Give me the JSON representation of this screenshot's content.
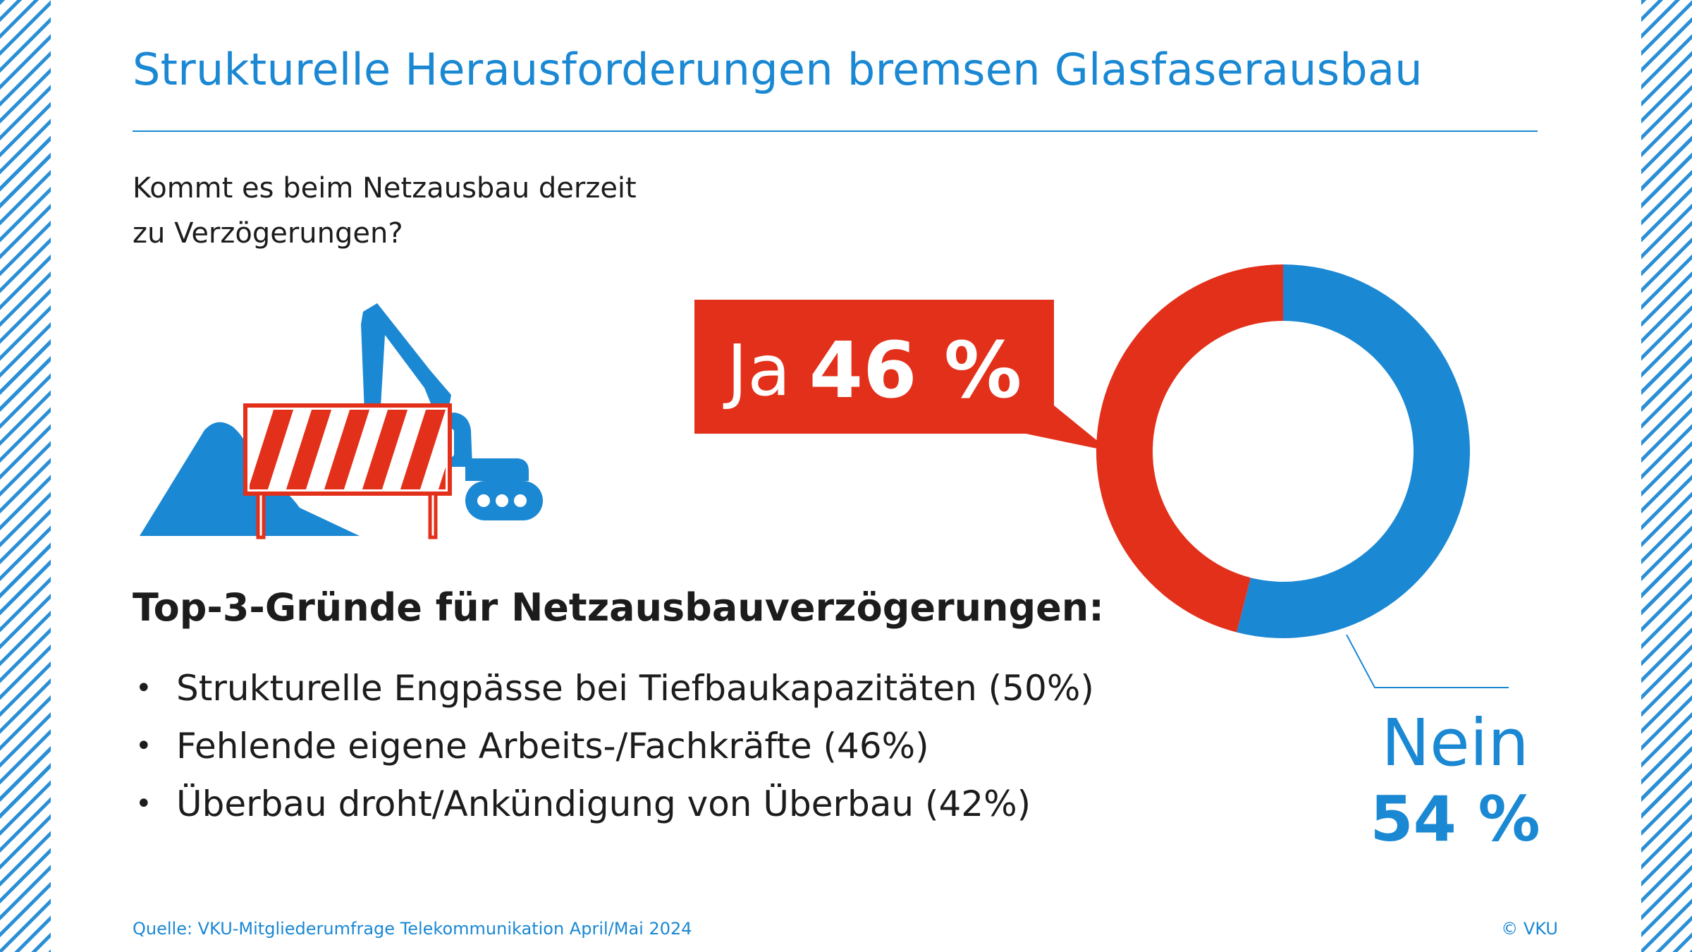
{
  "title": "Strukturelle Herausforderungen bremsen Glasfaserausbau",
  "question": {
    "line1": "Kommt es beim Netzausbau derzeit",
    "line2": "zu Verzögerungen?"
  },
  "chart_data": {
    "type": "pie",
    "categories": [
      "Ja",
      "Nein"
    ],
    "values": [
      46,
      54
    ],
    "unit": "%",
    "value_labels": [
      "46 %",
      "54 %"
    ],
    "colors": [
      "#e3301a",
      "#1a88d3"
    ],
    "style": "donut"
  },
  "callout": {
    "label": "Ja",
    "value": "46 %"
  },
  "nein": {
    "label": "Nein",
    "value": "54 %"
  },
  "reasons": {
    "title": "Top-3-Gründe für Netzausbauverzögerungen:",
    "bullet": "•",
    "items": [
      "Strukturelle Engpässe bei Tiefbaukapazitäten (50%)",
      "Fehlende eigene Arbeits-/Fachkräfte (46%)",
      "Überbau droht/Ankündigung von Überbau (42%)"
    ]
  },
  "footer": {
    "source": "Quelle: VKU-Mitgliederumfrage Telekommunikation April/Mai 2024",
    "copyright": "© VKU"
  },
  "colors": {
    "blue": "#1a88d3",
    "red": "#e3301a",
    "text": "#1c1c1c"
  },
  "icons": [
    "excavator-icon",
    "road-barrier-icon",
    "dirt-pile-icon"
  ]
}
